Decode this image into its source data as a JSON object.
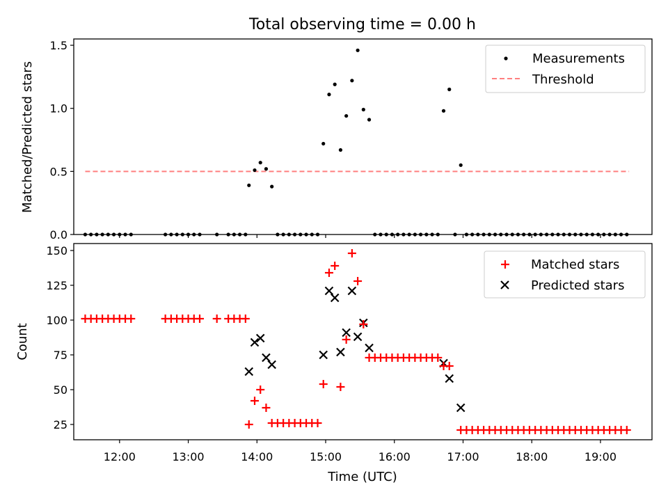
{
  "figure": {
    "title": "Total observing time = 0.00 h",
    "xlabel": "Time (UTC)"
  },
  "colors": {
    "measurement": "#000000",
    "threshold": "#ff7f7f",
    "matched": "#ff0000",
    "predicted": "#000000"
  },
  "chart_data": [
    {
      "type": "scatter",
      "ylabel": "Matched/Predicted stars",
      "xlim": [
        "11:20",
        "19:45"
      ],
      "ylim": [
        0,
        1.55
      ],
      "x_ticks": [
        "12:00",
        "13:00",
        "14:00",
        "15:00",
        "16:00",
        "17:00",
        "18:00",
        "19:00"
      ],
      "y_ticks": [
        "0.0",
        "0.5",
        "1.0",
        "1.5"
      ],
      "legend": {
        "position": "top-right",
        "entries": [
          "Measurements",
          "Threshold"
        ]
      },
      "threshold": {
        "name": "Threshold",
        "y": 0.5,
        "x_range": [
          "11:30",
          "19:25"
        ]
      },
      "series": [
        {
          "name": "Measurements",
          "points": [
            [
              "11:30",
              0
            ],
            [
              "11:35",
              0
            ],
            [
              "11:40",
              0
            ],
            [
              "11:45",
              0
            ],
            [
              "11:50",
              0
            ],
            [
              "11:55",
              0
            ],
            [
              "12:00",
              0
            ],
            [
              "12:05",
              0
            ],
            [
              "12:10",
              0
            ],
            [
              "12:40",
              0
            ],
            [
              "12:45",
              0
            ],
            [
              "12:50",
              0
            ],
            [
              "12:55",
              0
            ],
            [
              "13:00",
              0
            ],
            [
              "13:05",
              0
            ],
            [
              "13:10",
              0
            ],
            [
              "13:25",
              0
            ],
            [
              "13:35",
              0
            ],
            [
              "13:40",
              0
            ],
            [
              "13:45",
              0
            ],
            [
              "13:50",
              0
            ],
            [
              "13:53",
              0.39
            ],
            [
              "13:58",
              0.51
            ],
            [
              "14:03",
              0.57
            ],
            [
              "14:08",
              0.52
            ],
            [
              "14:13",
              0.38
            ],
            [
              "14:18",
              0
            ],
            [
              "14:23",
              0
            ],
            [
              "14:28",
              0
            ],
            [
              "14:33",
              0
            ],
            [
              "14:38",
              0
            ],
            [
              "14:43",
              0
            ],
            [
              "14:48",
              0
            ],
            [
              "14:53",
              0
            ],
            [
              "14:58",
              0.72
            ],
            [
              "15:03",
              1.11
            ],
            [
              "15:08",
              1.19
            ],
            [
              "15:13",
              0.67
            ],
            [
              "15:18",
              0.94
            ],
            [
              "15:23",
              1.22
            ],
            [
              "15:28",
              1.46
            ],
            [
              "15:33",
              0.99
            ],
            [
              "15:38",
              0.91
            ],
            [
              "15:43",
              0
            ],
            [
              "15:48",
              0
            ],
            [
              "15:53",
              0
            ],
            [
              "15:58",
              0
            ],
            [
              "16:03",
              0
            ],
            [
              "16:08",
              0
            ],
            [
              "16:13",
              0
            ],
            [
              "16:18",
              0
            ],
            [
              "16:23",
              0
            ],
            [
              "16:28",
              0
            ],
            [
              "16:33",
              0
            ],
            [
              "16:38",
              0
            ],
            [
              "16:43",
              0.98
            ],
            [
              "16:48",
              1.15
            ],
            [
              "16:53",
              0
            ],
            [
              "16:58",
              0.55
            ],
            [
              "17:03",
              0
            ],
            [
              "17:08",
              0
            ],
            [
              "17:13",
              0
            ],
            [
              "17:18",
              0
            ],
            [
              "17:23",
              0
            ],
            [
              "17:28",
              0
            ],
            [
              "17:33",
              0
            ],
            [
              "17:38",
              0
            ],
            [
              "17:43",
              0
            ],
            [
              "17:48",
              0
            ],
            [
              "17:53",
              0
            ],
            [
              "17:58",
              0
            ],
            [
              "18:03",
              0
            ],
            [
              "18:08",
              0
            ],
            [
              "18:13",
              0
            ],
            [
              "18:18",
              0
            ],
            [
              "18:23",
              0
            ],
            [
              "18:28",
              0
            ],
            [
              "18:33",
              0
            ],
            [
              "18:38",
              0
            ],
            [
              "18:43",
              0
            ],
            [
              "18:48",
              0
            ],
            [
              "18:53",
              0
            ],
            [
              "18:58",
              0
            ],
            [
              "19:03",
              0
            ],
            [
              "19:08",
              0
            ],
            [
              "19:13",
              0
            ],
            [
              "19:18",
              0
            ],
            [
              "19:23",
              0
            ]
          ]
        }
      ]
    },
    {
      "type": "scatter",
      "ylabel": "Count",
      "xlim": [
        "11:20",
        "19:45"
      ],
      "ylim": [
        14,
        155
      ],
      "x_ticks": [
        "12:00",
        "13:00",
        "14:00",
        "15:00",
        "16:00",
        "17:00",
        "18:00",
        "19:00"
      ],
      "y_ticks": [
        "25",
        "50",
        "75",
        "100",
        "125",
        "150"
      ],
      "legend": {
        "position": "top-right",
        "entries": [
          "Matched stars",
          "Predicted stars"
        ]
      },
      "series": [
        {
          "name": "Matched stars",
          "points": [
            [
              "11:30",
              101
            ],
            [
              "11:35",
              101
            ],
            [
              "11:40",
              101
            ],
            [
              "11:45",
              101
            ],
            [
              "11:50",
              101
            ],
            [
              "11:55",
              101
            ],
            [
              "12:00",
              101
            ],
            [
              "12:05",
              101
            ],
            [
              "12:10",
              101
            ],
            [
              "12:40",
              101
            ],
            [
              "12:45",
              101
            ],
            [
              "12:50",
              101
            ],
            [
              "12:55",
              101
            ],
            [
              "13:00",
              101
            ],
            [
              "13:05",
              101
            ],
            [
              "13:10",
              101
            ],
            [
              "13:25",
              101
            ],
            [
              "13:35",
              101
            ],
            [
              "13:40",
              101
            ],
            [
              "13:45",
              101
            ],
            [
              "13:50",
              101
            ],
            [
              "13:53",
              25
            ],
            [
              "13:58",
              42
            ],
            [
              "14:03",
              50
            ],
            [
              "14:08",
              37
            ],
            [
              "14:13",
              26
            ],
            [
              "14:18",
              26
            ],
            [
              "14:23",
              26
            ],
            [
              "14:28",
              26
            ],
            [
              "14:33",
              26
            ],
            [
              "14:38",
              26
            ],
            [
              "14:43",
              26
            ],
            [
              "14:48",
              26
            ],
            [
              "14:53",
              26
            ],
            [
              "14:58",
              54
            ],
            [
              "15:03",
              134
            ],
            [
              "15:08",
              139
            ],
            [
              "15:13",
              52
            ],
            [
              "15:18",
              86
            ],
            [
              "15:23",
              148
            ],
            [
              "15:28",
              128
            ],
            [
              "15:33",
              97
            ],
            [
              "15:38",
              73
            ],
            [
              "15:43",
              73
            ],
            [
              "15:48",
              73
            ],
            [
              "15:53",
              73
            ],
            [
              "15:58",
              73
            ],
            [
              "16:03",
              73
            ],
            [
              "16:08",
              73
            ],
            [
              "16:13",
              73
            ],
            [
              "16:18",
              73
            ],
            [
              "16:23",
              73
            ],
            [
              "16:28",
              73
            ],
            [
              "16:33",
              73
            ],
            [
              "16:38",
              73
            ],
            [
              "16:43",
              67
            ],
            [
              "16:48",
              67
            ],
            [
              "16:58",
              21
            ],
            [
              "17:03",
              21
            ],
            [
              "17:08",
              21
            ],
            [
              "17:13",
              21
            ],
            [
              "17:18",
              21
            ],
            [
              "17:23",
              21
            ],
            [
              "17:28",
              21
            ],
            [
              "17:33",
              21
            ],
            [
              "17:38",
              21
            ],
            [
              "17:43",
              21
            ],
            [
              "17:48",
              21
            ],
            [
              "17:53",
              21
            ],
            [
              "17:58",
              21
            ],
            [
              "18:03",
              21
            ],
            [
              "18:08",
              21
            ],
            [
              "18:13",
              21
            ],
            [
              "18:18",
              21
            ],
            [
              "18:23",
              21
            ],
            [
              "18:28",
              21
            ],
            [
              "18:33",
              21
            ],
            [
              "18:38",
              21
            ],
            [
              "18:43",
              21
            ],
            [
              "18:48",
              21
            ],
            [
              "18:53",
              21
            ],
            [
              "18:58",
              21
            ],
            [
              "19:03",
              21
            ],
            [
              "19:08",
              21
            ],
            [
              "19:13",
              21
            ],
            [
              "19:18",
              21
            ],
            [
              "19:23",
              21
            ]
          ]
        },
        {
          "name": "Predicted stars",
          "points": [
            [
              "13:53",
              63
            ],
            [
              "13:58",
              84
            ],
            [
              "14:03",
              87
            ],
            [
              "14:08",
              73
            ],
            [
              "14:13",
              68
            ],
            [
              "14:58",
              75
            ],
            [
              "15:03",
              121
            ],
            [
              "15:08",
              116
            ],
            [
              "15:13",
              77
            ],
            [
              "15:18",
              91
            ],
            [
              "15:23",
              121
            ],
            [
              "15:28",
              88
            ],
            [
              "15:33",
              98
            ],
            [
              "15:38",
              80
            ],
            [
              "16:43",
              69
            ],
            [
              "16:48",
              58
            ],
            [
              "16:58",
              37
            ]
          ]
        }
      ]
    }
  ]
}
